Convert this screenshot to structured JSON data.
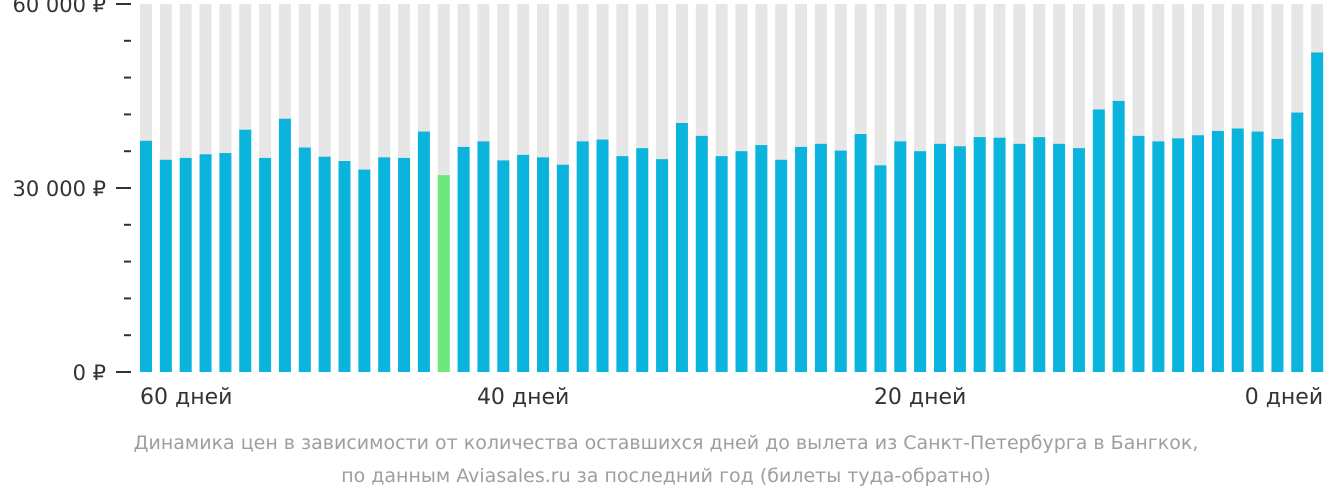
{
  "chart_data": {
    "type": "bar",
    "title": "",
    "xlabel": "",
    "ylabel": "",
    "ylim": [
      0,
      60000
    ],
    "yticks": [
      {
        "value": 0,
        "label": "0 ₽"
      },
      {
        "value": 30000,
        "label": "30 000 ₽"
      },
      {
        "value": 60000,
        "label": "60 000 ₽"
      }
    ],
    "xticks": [
      {
        "index": 0,
        "label": "60 дней"
      },
      {
        "index": 19,
        "label": "40 дней"
      },
      {
        "index": 39,
        "label": "20 дней"
      },
      {
        "index": 59,
        "label": "0 дней"
      }
    ],
    "grid": false,
    "legend": "none",
    "colors": {
      "bar": "#0bb4dd",
      "highlight": "#6ee77d",
      "background_bar": "#e6e6e6",
      "axis": "#333333"
    },
    "highlight_index": 15,
    "values": [
      37700,
      34600,
      34900,
      35500,
      35700,
      39500,
      34900,
      41300,
      36600,
      35100,
      34400,
      33000,
      35000,
      34900,
      39200,
      32100,
      36700,
      37600,
      34500,
      35400,
      35000,
      33800,
      37600,
      37900,
      35200,
      36500,
      34700,
      40600,
      38500,
      35200,
      36000,
      37000,
      34600,
      36700,
      37200,
      36100,
      38800,
      33700,
      37600,
      36000,
      37200,
      36800,
      38300,
      38200,
      37200,
      38300,
      37200,
      36500,
      42800,
      44200,
      38500,
      37600,
      38100,
      38600,
      39300,
      39700,
      39200,
      38000,
      42300,
      52100
    ]
  },
  "caption": {
    "line1": "Динамика цен в зависимости от количества оставшихся дней до вылета из Санкт-Петербурга в Бангкок,",
    "line2": "по данным Aviasales.ru за последний год (билеты туда-обратно)"
  }
}
